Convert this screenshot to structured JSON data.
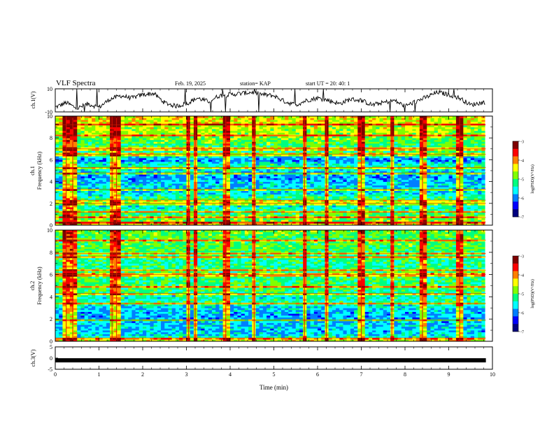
{
  "header": {
    "title": "VLF Spectra",
    "date": "Feb. 19, 2025",
    "station": "station= KAP",
    "start_ut": "start  UT =   20: 40: 1"
  },
  "colorbar": {
    "label": "log(PSD)(V²/Hz)",
    "ticks": [
      -3,
      -4,
      -5,
      -6,
      -7
    ],
    "colors": [
      "#7f0000",
      "#ff0000",
      "#ff7f00",
      "#ffff00",
      "#7fff00",
      "#00ff7f",
      "#00ffff",
      "#007fff",
      "#0000ff",
      "#00007f"
    ]
  },
  "chart_data": [
    {
      "type": "line",
      "name": "ch1-waveform",
      "ylabel": "ch.1(V)",
      "ylim": [
        -10,
        10
      ],
      "yticks": [
        10,
        -10
      ],
      "xlim": [
        0,
        10
      ],
      "x": [
        0,
        0.25,
        0.5,
        0.75,
        1.0,
        1.25,
        1.5,
        1.75,
        2.0,
        2.25,
        2.5,
        2.75,
        3.0,
        3.25,
        3.5,
        3.75,
        4.0,
        4.25,
        4.5,
        4.75,
        5.0,
        5.25,
        5.5,
        5.75,
        6.0,
        6.25,
        6.5,
        6.75,
        7.0,
        7.25,
        7.5,
        7.75,
        8.0,
        8.25,
        8.5,
        8.75,
        9.0,
        9.25,
        9.5,
        9.75
      ],
      "y": [
        -6,
        -2,
        -7,
        -3,
        -6,
        1,
        4,
        2,
        5,
        6,
        -2,
        -5,
        -3,
        2,
        -1,
        4,
        5,
        6,
        7,
        5,
        4,
        -1,
        -4,
        0,
        2,
        0,
        -3,
        1,
        0,
        -4,
        -2,
        0,
        -5,
        -1,
        3,
        7,
        5,
        2,
        -4,
        -2
      ]
    },
    {
      "type": "heatmap",
      "name": "ch1-spectrogram",
      "ylabel": "ch.1 Frequency (kHz)",
      "ylim": [
        0,
        10
      ],
      "yticks": [
        0,
        2,
        4,
        6,
        8,
        10
      ],
      "xlim": [
        0,
        10
      ],
      "z_range": [
        -7,
        -3
      ],
      "freq_profile_khz": [
        0,
        0.5,
        1,
        1.5,
        2,
        2.5,
        3,
        3.5,
        4,
        4.5,
        5,
        5.5,
        6,
        6.5,
        7,
        7.5,
        8,
        8.5,
        9,
        9.5,
        10
      ],
      "typical_log_psd": [
        -4.2,
        -4.9,
        -5.0,
        -5.4,
        -5.6,
        -5.1,
        -5.7,
        -5.6,
        -5.8,
        -5.9,
        -5.6,
        -5.3,
        -6.0,
        -5.4,
        -5.2,
        -5.0,
        -4.9,
        -4.7,
        -4.6,
        -4.5,
        -4.4
      ],
      "lines_khz": [
        0.3,
        0.7,
        1.2,
        2.0,
        2.3,
        3.3,
        4.8,
        5.3,
        6.5,
        7.0,
        8.2,
        9.2
      ],
      "bursts_min": [
        0.25,
        0.4,
        1.3,
        1.4,
        3.05,
        3.2,
        3.9,
        4.55,
        5.7,
        6.2,
        7.0,
        7.7,
        8.4,
        9.25
      ]
    },
    {
      "type": "heatmap",
      "name": "ch2-spectrogram",
      "ylabel": "ch.2 Frequency (kHz)",
      "ylim": [
        0,
        10
      ],
      "yticks": [
        0,
        2,
        4,
        6,
        8,
        10
      ],
      "xlim": [
        0,
        10
      ],
      "z_range": [
        -7,
        -3
      ],
      "freq_profile_khz": [
        0,
        0.5,
        1,
        1.5,
        2,
        2.5,
        3,
        3.5,
        4,
        4.5,
        5,
        5.5,
        6,
        6.5,
        7,
        7.5,
        8,
        8.5,
        9,
        9.5,
        10
      ],
      "typical_log_psd": [
        -4.3,
        -5.6,
        -5.8,
        -5.7,
        -5.9,
        -5.8,
        -5.7,
        -5.3,
        -5.4,
        -5.2,
        -5.0,
        -5.2,
        -5.1,
        -5.2,
        -5.3,
        -5.2,
        -5.1,
        -5.0,
        -5.0,
        -5.0,
        -4.9
      ],
      "lines_khz": [
        0.3,
        1.9,
        3.4,
        4.3,
        4.9,
        6.0,
        6.4,
        7.6,
        7.9,
        9.1
      ],
      "bursts_min": [
        0.25,
        0.4,
        1.3,
        1.4,
        3.05,
        3.2,
        3.9,
        4.55,
        5.7,
        6.2,
        7.0,
        7.7,
        8.4,
        9.25
      ]
    },
    {
      "type": "line",
      "name": "ch3-waveform",
      "ylabel": "ch.3(V)",
      "ylim": [
        -5,
        5
      ],
      "yticks": [
        5,
        0,
        -5
      ],
      "xlim": [
        0,
        10
      ],
      "x": [
        0,
        9.85
      ],
      "y": [
        -1,
        -1
      ],
      "xlabel": "Time  (min)",
      "xticks": [
        0,
        1,
        2,
        3,
        4,
        5,
        6,
        7,
        8,
        9,
        10
      ]
    }
  ]
}
